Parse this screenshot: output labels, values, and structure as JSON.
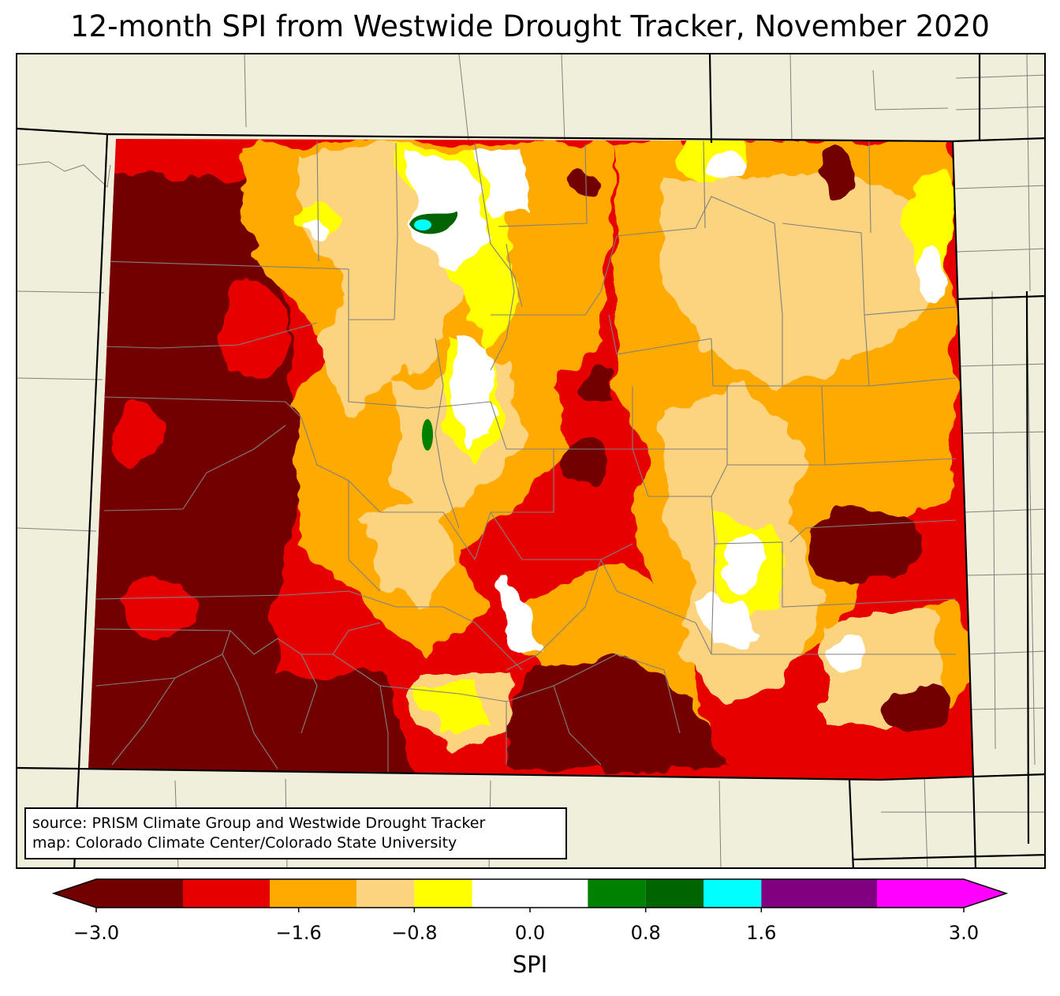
{
  "title": "12-month SPI from Westwide Drought Tracker, November 2020",
  "source_lines": [
    "source: PRISM Climate Group and Westwide Drought Tracker",
    "map: Colorado Climate Center/Colorado State University"
  ],
  "colorbar": {
    "label": "SPI",
    "extend": "both",
    "min": -3.0,
    "max": 3.0,
    "bins": [
      {
        "from": -3.0,
        "to": -2.4,
        "color": "#730000"
      },
      {
        "from": -2.4,
        "to": -1.8,
        "color": "#e60000"
      },
      {
        "from": -1.8,
        "to": -1.2,
        "color": "#ffaa00"
      },
      {
        "from": -1.2,
        "to": -0.8,
        "color": "#fcd37f"
      },
      {
        "from": -0.8,
        "to": -0.4,
        "color": "#ffff00"
      },
      {
        "from": -0.4,
        "to": 0.4,
        "color": "#ffffff"
      },
      {
        "from": 0.4,
        "to": 0.8,
        "color": "#008000"
      },
      {
        "from": 0.8,
        "to": 1.2,
        "color": "#006400"
      },
      {
        "from": 1.2,
        "to": 1.6,
        "color": "#00ffff"
      },
      {
        "from": 1.6,
        "to": 2.4,
        "color": "#800080"
      },
      {
        "from": 2.4,
        "to": 3.0,
        "color": "#ff00ff"
      }
    ],
    "under_color": "#730000",
    "over_color": "#ff00ff",
    "tick_labels": [
      {
        "value": -3.0,
        "text": "−3.0"
      },
      {
        "value": -1.6,
        "text": "−1.6"
      },
      {
        "value": -0.8,
        "text": "−0.8"
      },
      {
        "value": 0.0,
        "text": "0.0"
      },
      {
        "value": 0.8,
        "text": "0.8"
      },
      {
        "value": 1.6,
        "text": "1.6"
      },
      {
        "value": 3.0,
        "text": "3.0"
      }
    ]
  },
  "map": {
    "background_color": "#f0efdb",
    "state_border_color": "#000000",
    "county_line_color": "#808080"
  }
}
